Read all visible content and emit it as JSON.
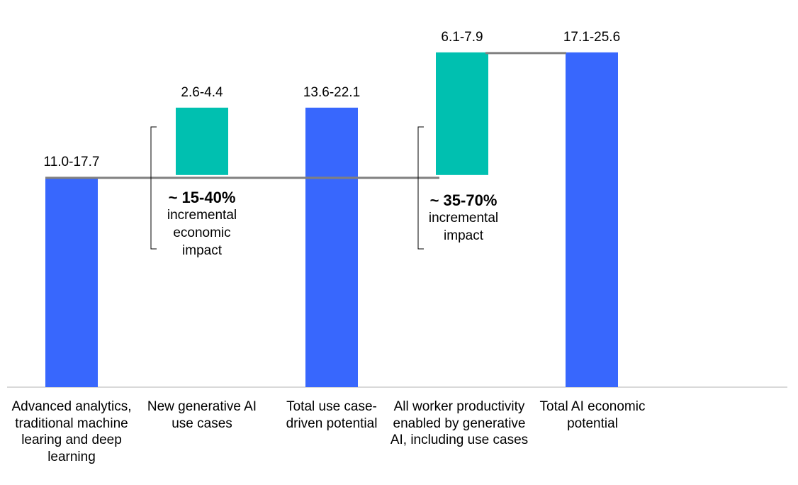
{
  "chart_data": {
    "type": "bar",
    "subtype": "waterfall",
    "title": "",
    "xlabel": "",
    "ylabel": "",
    "ylim": [
      4.4,
      29
    ],
    "grid": false,
    "legend": "none",
    "colors": {
      "total": "#3867fd",
      "increment": "#00c0b0",
      "connector": "#808080",
      "axis": "#d9d9d9"
    },
    "categories": [
      "Advanced analytics, traditional machine learing and deep learning",
      "New generative AI use cases",
      "Total use case-driven potential",
      "All worker productivity enabled by generative AI, including use cases",
      "Total AI economic potential"
    ],
    "bars": [
      {
        "kind": "total",
        "label": "11.0-17.7",
        "low": 11.0,
        "high": 17.7,
        "start": 0,
        "end": 17.7
      },
      {
        "kind": "increment",
        "label": "2.6-4.4",
        "low": 2.6,
        "high": 4.4,
        "start": 17.7,
        "end": 22.1
      },
      {
        "kind": "total",
        "label": "13.6-22.1",
        "low": 13.6,
        "high": 22.1,
        "start": 0,
        "end": 22.1
      },
      {
        "kind": "increment",
        "label": "6.1-7.9",
        "low": 6.1,
        "high": 7.9,
        "start": 17.7,
        "end": 25.6
      },
      {
        "kind": "total",
        "label": "17.1-25.6",
        "low": 17.1,
        "high": 25.6,
        "start": 0,
        "end": 25.6
      }
    ],
    "annotations": [
      {
        "pct": "~ 15-40%",
        "lines": [
          "incremental",
          "economic",
          "impact"
        ]
      },
      {
        "pct": "~ 35-70%",
        "lines": [
          "incremental",
          "impact"
        ]
      }
    ]
  }
}
